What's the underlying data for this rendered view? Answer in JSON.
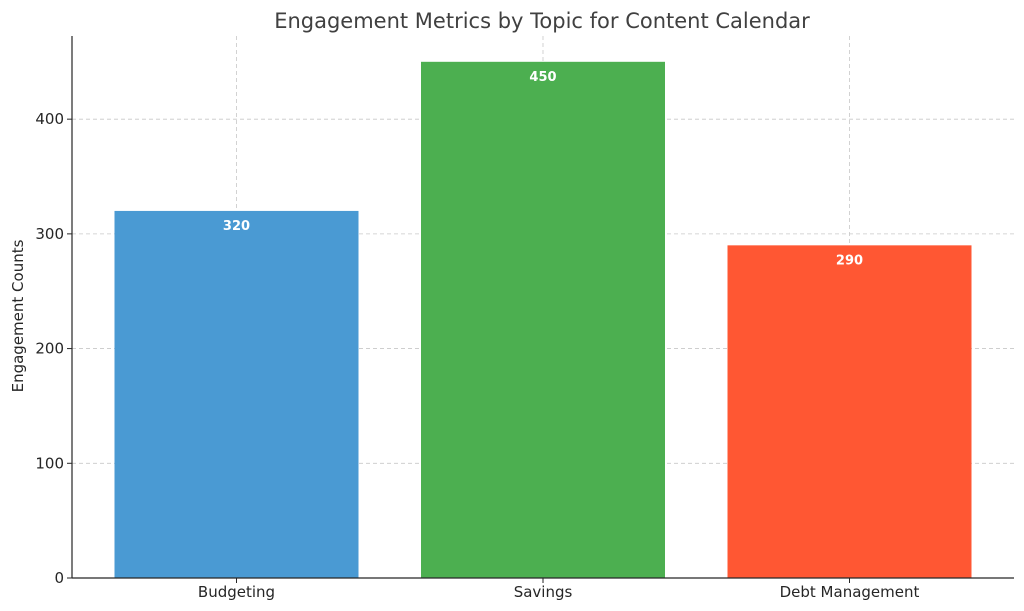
{
  "chart_data": {
    "type": "bar",
    "title": "Engagement Metrics by Topic for Content Calendar",
    "xlabel": "",
    "ylabel": "Engagement Counts",
    "categories": [
      "Budgeting",
      "Savings",
      "Debt Management"
    ],
    "values": [
      320,
      450,
      290
    ],
    "colors": [
      "#4a9ad3",
      "#4caf50",
      "#ff5733"
    ],
    "yticks": [
      "0",
      "100",
      "200",
      "300",
      "400"
    ],
    "ylim": [
      0,
      472.5
    ],
    "grid": true,
    "legend": "none"
  }
}
